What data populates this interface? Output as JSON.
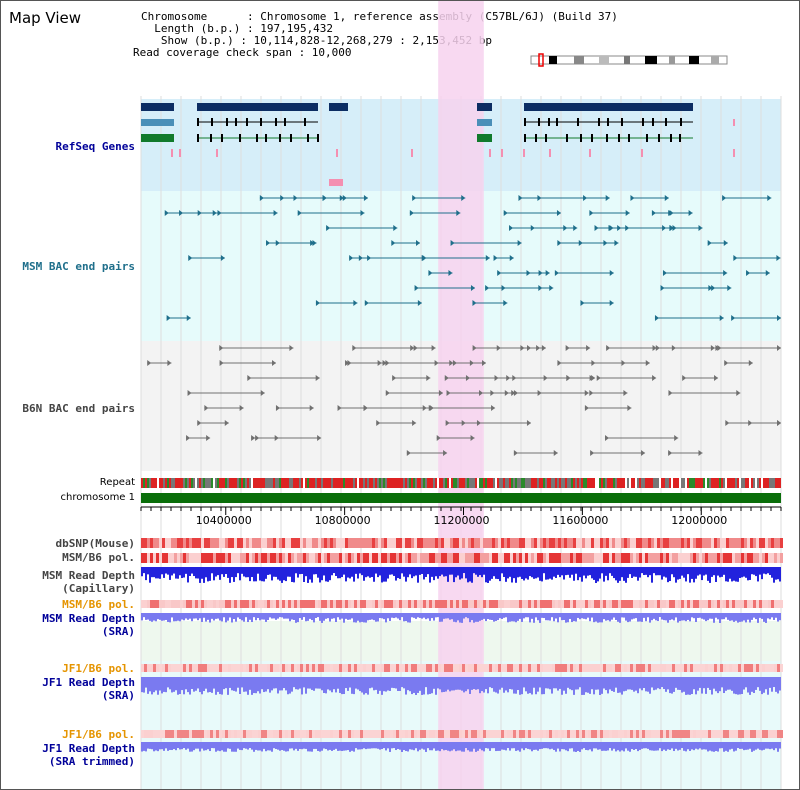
{
  "view_title": "Map View",
  "info": {
    "chromosome": "Chromosome      : Chromosome 1, reference assembly (C57BL/6J) (Build 37)",
    "length": "  Length (b.p.) : 197,195,432",
    "show": "   Show (b.p.) : 10,114,828-12,268,279 : 2,153,452 bp",
    "coverage": "Read coverage check span : 10,000"
  },
  "tracks": {
    "refseq": "RefSeq Genes",
    "msm_bac": "MSM BAC end pairs",
    "b6n_bac": "B6N BAC end pairs",
    "repeat": "Repeat",
    "chromosome": "chromosome 1",
    "dbsnp": "dbSNP(Mouse)",
    "msm_b6_pol_1": "MSM/B6 pol.",
    "msm_depth_cap_1": "MSM Read Depth",
    "msm_depth_cap_2": "(Capillary)",
    "msm_b6_pol_2": "MSM/B6 pol.",
    "msm_depth_sra_1": "MSM Read Depth",
    "msm_depth_sra_2": "(SRA)",
    "jf1_b6_pol_1": "JF1/B6 pol.",
    "jf1_depth_sra_1": "JF1 Read Depth",
    "jf1_depth_sra_2": "(SRA)",
    "jf1_b6_pol_2": "JF1/B6 pol.",
    "jf1_depth_trim_1": "JF1 Read Depth",
    "jf1_depth_trim_2": "(SRA trimmed)"
  },
  "axis": {
    "ticks": [
      "10400000",
      "10800000",
      "11200000",
      "11600000",
      "12000000"
    ],
    "tick_values": [
      10400000,
      10800000,
      11200000,
      11600000,
      12000000
    ],
    "range": [
      10114828,
      12268279
    ]
  },
  "highlight_region": {
    "start": 11114828,
    "end": 11268279
  },
  "colors": {
    "refseq_bg": "#d6eef9",
    "msm_bg": "#e6fbfb",
    "b6n_bg": "#f3f3f3",
    "highlight": "#f7d2ef",
    "gene_dark": "#0c2d63",
    "gene_mid": "#4a8fb8",
    "gene_green": "#117a2c",
    "msm_line": "#1f6f8b",
    "b6n_line": "#707070",
    "chromosome": "#0a6e0a",
    "depth_blue": "#2222dd",
    "depth_light": "#7a7af0",
    "label_navy": "#000099",
    "label_teal": "#1f6f8b",
    "label_orange": "#e59400",
    "label_gray": "#444444"
  }
}
